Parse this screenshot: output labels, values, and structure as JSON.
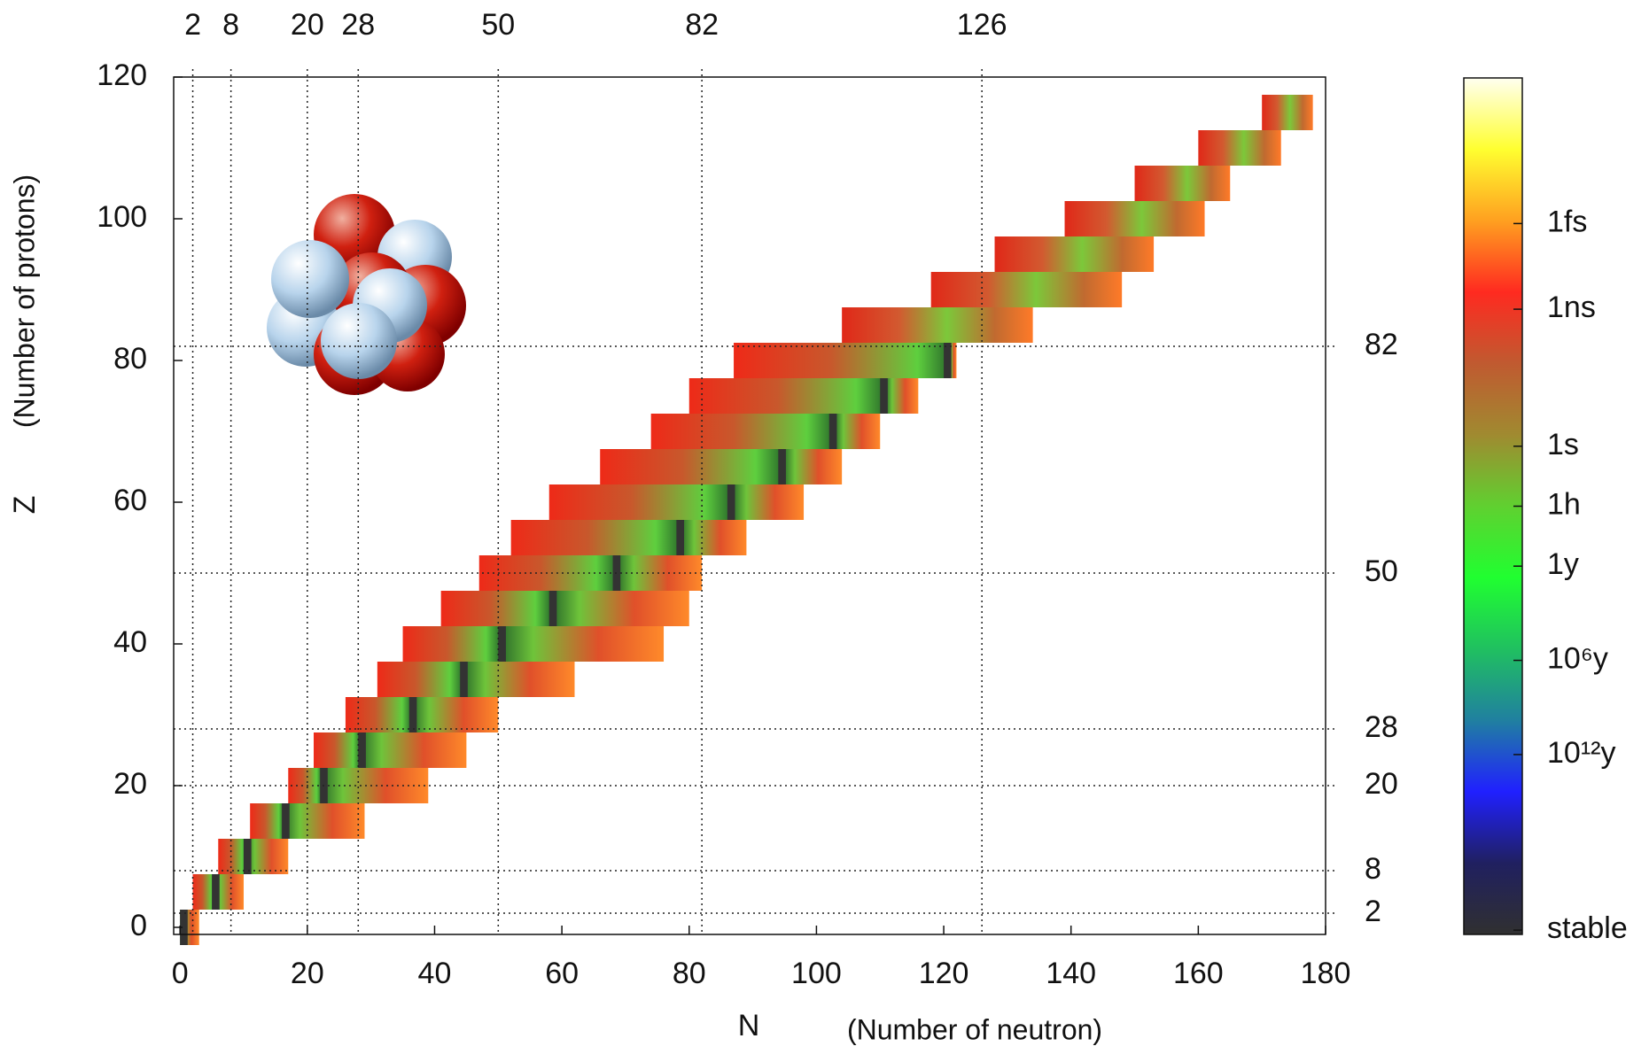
{
  "chart_data": {
    "type": "nuclide-chart",
    "x_label": "N",
    "x_label_note": "(Number of neutron)",
    "y_label": "Z",
    "y_label_note": "(Number of protons)",
    "xlim": [
      -1,
      180
    ],
    "xticks": [
      0,
      20,
      40,
      60,
      80,
      100,
      120,
      140,
      160,
      180
    ],
    "ylim": [
      -1,
      120
    ],
    "yticks": [
      0,
      20,
      40,
      60,
      80,
      100,
      120
    ],
    "magic_n": [
      2,
      8,
      20,
      28,
      50,
      82,
      126
    ],
    "magic_z": [
      2,
      8,
      20,
      28,
      50,
      82
    ],
    "z": [
      0,
      5,
      10,
      15,
      20,
      25,
      30,
      35,
      40,
      45,
      50,
      55,
      60,
      65,
      70,
      75,
      80,
      85,
      90,
      95,
      100,
      105,
      110,
      115
    ],
    "n_min": [
      0,
      2,
      6,
      11,
      17,
      21,
      26,
      31,
      35,
      41,
      47,
      52,
      58,
      66,
      74,
      80,
      87,
      104,
      118,
      128,
      139,
      150,
      160,
      170
    ],
    "n_max": [
      2,
      9,
      16,
      28,
      38,
      44,
      49,
      61,
      75,
      79,
      81,
      88,
      97,
      103,
      109,
      115,
      121,
      133,
      147,
      152,
      160,
      164,
      172,
      177
    ],
    "n_stable": [
      0,
      5,
      10,
      16,
      22,
      28,
      36,
      44,
      50,
      58,
      68,
      78,
      86,
      94,
      102,
      110,
      120,
      null,
      null,
      null,
      null,
      null,
      null,
      null
    ],
    "colorbar": {
      "labels": [
        "1fs",
        "1ns",
        "1s",
        "1h",
        "1y",
        "10⁶y",
        "10¹²y",
        "stable"
      ],
      "colors": [
        "#fffff0",
        "#ffff30",
        "#ffa020",
        "#ff2a20",
        "#c05a30",
        "#a08a30",
        "#60d030",
        "#20ff30",
        "#20c060",
        "#2080a0",
        "#2020ff",
        "#202060",
        "#303030"
      ]
    }
  }
}
